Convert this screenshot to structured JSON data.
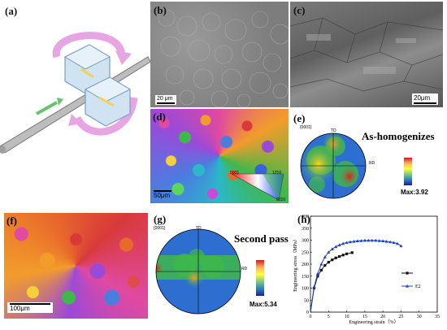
{
  "panels": {
    "a": {
      "label": "(a)"
    },
    "b": {
      "label": "(b)",
      "scale": "20 μm"
    },
    "c": {
      "label": "(c)",
      "scale": "20μm"
    },
    "d": {
      "label": "(d)",
      "scale": "50μm",
      "ipf": {
        "top_left": "0001",
        "top_right": "12̄10",
        "bottom": "01̄10"
      }
    },
    "e": {
      "label": "(e)",
      "title": "As-homogenizes",
      "pole": "{0001}",
      "td": "TD",
      "rd": "RD",
      "max": "Max:3.92"
    },
    "f": {
      "label": "(f)",
      "scale": "100μm"
    },
    "g": {
      "label": "(g)",
      "title": "Second pass",
      "pole": "{0001}",
      "td": "TD",
      "rd": "RD",
      "max": "Max:5.34"
    },
    "h": {
      "label": "(h)"
    }
  },
  "chart_data": {
    "type": "line",
    "xlabel": "Engineering strain（%）",
    "ylabel": "Engineering stress（MPa）",
    "xlim": [
      0,
      35
    ],
    "ylim": [
      0,
      400
    ],
    "xticks": [
      "0",
      "5",
      "10",
      "15",
      "20",
      "25",
      "30",
      "35"
    ],
    "yticks": [
      "0",
      "50",
      "100",
      "150",
      "200",
      "250",
      "300",
      "350",
      "400"
    ],
    "series": [
      {
        "name": "",
        "marker": "square",
        "color": "#111111",
        "x": [
          0,
          1,
          2,
          3,
          4,
          5,
          6,
          7,
          8,
          9,
          10,
          11.5
        ],
        "y": [
          0,
          100,
          150,
          175,
          195,
          208,
          218,
          226,
          232,
          238,
          243,
          248
        ]
      },
      {
        "name": "E2",
        "marker": "triangle",
        "color": "#1f3fcf",
        "x": [
          0,
          1,
          2,
          3,
          4,
          5,
          6,
          7,
          8,
          9,
          10,
          11,
          12,
          13,
          14,
          15,
          16,
          17,
          18,
          19,
          20,
          21,
          22,
          23,
          24,
          25
        ],
        "y": [
          0,
          105,
          160,
          200,
          230,
          250,
          263,
          273,
          280,
          286,
          290,
          293,
          295,
          297,
          298,
          299,
          299,
          299,
          299,
          298,
          297,
          295,
          293,
          290,
          286,
          276
        ]
      }
    ]
  }
}
